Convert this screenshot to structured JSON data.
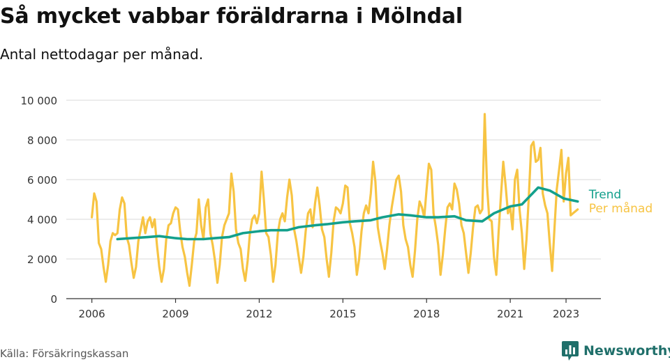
{
  "header": {
    "title": "Så mycket vabbar föräldrarna i Mölndal",
    "subtitle": "Antal nettodagar per månad."
  },
  "footer": {
    "source": "Källa: Försäkringskassan",
    "brand": "Newsworthy",
    "brand_icon": "bar-chart-logo-icon"
  },
  "colors": {
    "trend": "#13a08c",
    "monthly": "#f7c443",
    "grid": "#d9d9d9",
    "axis": "#333333",
    "brand": "#1f6f6a"
  },
  "chart_data": {
    "type": "line",
    "title": "Så mycket vabbar föräldrarna i Mölndal",
    "subtitle": "Antal nettodagar per månad.",
    "xlabel": "",
    "ylabel": "",
    "x_ticks": [
      "2006",
      "2009",
      "2012",
      "2015",
      "2018",
      "2021",
      "2023"
    ],
    "y_ticks": [
      "0",
      "2 000",
      "4 000",
      "6 000",
      "8 000",
      "10 000"
    ],
    "y_tick_values": [
      0,
      2000,
      4000,
      6000,
      8000,
      10000
    ],
    "ylim": [
      0,
      10000
    ],
    "x_range": [
      "2005-02",
      "2024-04"
    ],
    "grid": "horizontal",
    "legend": "line-end labels",
    "series": [
      {
        "name": "Per månad",
        "color": "#f7c443",
        "x": [
          "2006-01",
          "2006-02",
          "2006-03",
          "2006-04",
          "2006-05",
          "2006-06",
          "2006-07",
          "2006-08",
          "2006-09",
          "2006-10",
          "2006-11",
          "2006-12",
          "2007-01",
          "2007-02",
          "2007-03",
          "2007-04",
          "2007-05",
          "2007-06",
          "2007-07",
          "2007-08",
          "2007-09",
          "2007-10",
          "2007-11",
          "2007-12",
          "2008-01",
          "2008-02",
          "2008-03",
          "2008-04",
          "2008-05",
          "2008-06",
          "2008-07",
          "2008-08",
          "2008-09",
          "2008-10",
          "2008-11",
          "2008-12",
          "2009-01",
          "2009-02",
          "2009-03",
          "2009-04",
          "2009-05",
          "2009-06",
          "2009-07",
          "2009-08",
          "2009-09",
          "2009-10",
          "2009-11",
          "2009-12",
          "2010-01",
          "2010-02",
          "2010-03",
          "2010-04",
          "2010-05",
          "2010-06",
          "2010-07",
          "2010-08",
          "2010-09",
          "2010-10",
          "2010-11",
          "2010-12",
          "2011-01",
          "2011-02",
          "2011-03",
          "2011-04",
          "2011-05",
          "2011-06",
          "2011-07",
          "2011-08",
          "2011-09",
          "2011-10",
          "2011-11",
          "2011-12",
          "2012-01",
          "2012-02",
          "2012-03",
          "2012-04",
          "2012-05",
          "2012-06",
          "2012-07",
          "2012-08",
          "2012-09",
          "2012-10",
          "2012-11",
          "2012-12",
          "2013-01",
          "2013-02",
          "2013-03",
          "2013-04",
          "2013-05",
          "2013-06",
          "2013-07",
          "2013-08",
          "2013-09",
          "2013-10",
          "2013-11",
          "2013-12",
          "2014-01",
          "2014-02",
          "2014-03",
          "2014-04",
          "2014-05",
          "2014-06",
          "2014-07",
          "2014-08",
          "2014-09",
          "2014-10",
          "2014-11",
          "2014-12",
          "2015-01",
          "2015-02",
          "2015-03",
          "2015-04",
          "2015-05",
          "2015-06",
          "2015-07",
          "2015-08",
          "2015-09",
          "2015-10",
          "2015-11",
          "2015-12",
          "2016-01",
          "2016-02",
          "2016-03",
          "2016-04",
          "2016-05",
          "2016-06",
          "2016-07",
          "2016-08",
          "2016-09",
          "2016-10",
          "2016-11",
          "2016-12",
          "2017-01",
          "2017-02",
          "2017-03",
          "2017-04",
          "2017-05",
          "2017-06",
          "2017-07",
          "2017-08",
          "2017-09",
          "2017-10",
          "2017-11",
          "2017-12",
          "2018-01",
          "2018-02",
          "2018-03",
          "2018-04",
          "2018-05",
          "2018-06",
          "2018-07",
          "2018-08",
          "2018-09",
          "2018-10",
          "2018-11",
          "2018-12",
          "2019-01",
          "2019-02",
          "2019-03",
          "2019-04",
          "2019-05",
          "2019-06",
          "2019-07",
          "2019-08",
          "2019-09",
          "2019-10",
          "2019-11",
          "2019-12",
          "2020-01",
          "2020-02",
          "2020-03",
          "2020-04",
          "2020-05",
          "2020-06",
          "2020-07",
          "2020-08",
          "2020-09",
          "2020-10",
          "2020-11",
          "2020-12",
          "2021-01",
          "2021-02",
          "2021-03",
          "2021-04",
          "2021-05",
          "2021-06",
          "2021-07",
          "2021-08",
          "2021-09",
          "2021-10",
          "2021-11",
          "2021-12",
          "2022-01",
          "2022-02",
          "2022-03",
          "2022-04",
          "2022-05",
          "2022-06",
          "2022-07",
          "2022-08",
          "2022-09",
          "2022-10",
          "2022-11",
          "2022-12",
          "2023-01",
          "2023-02",
          "2023-03",
          "2023-04",
          "2023-05",
          "2023-06"
        ],
        "values": [
          4100,
          5300,
          4900,
          2800,
          2500,
          1600,
          850,
          1700,
          2900,
          3300,
          3200,
          3300,
          4500,
          5100,
          4800,
          3100,
          2700,
          1800,
          1050,
          1600,
          2900,
          3500,
          4100,
          3300,
          3900,
          4100,
          3600,
          4000,
          2700,
          1600,
          850,
          1500,
          3000,
          3700,
          3800,
          4300,
          4600,
          4500,
          3400,
          2600,
          2100,
          1300,
          650,
          1700,
          2900,
          3300,
          5000,
          3700,
          3000,
          4600,
          5000,
          3300,
          2700,
          1900,
          800,
          1700,
          3100,
          3700,
          4000,
          4300,
          6300,
          5400,
          3500,
          2800,
          2500,
          1500,
          900,
          1900,
          3300,
          4000,
          4200,
          3800,
          4300,
          6400,
          5000,
          3300,
          3100,
          2200,
          850,
          1700,
          3300,
          4000,
          4300,
          3900,
          5100,
          6000,
          5200,
          3500,
          2900,
          2100,
          1300,
          2100,
          3400,
          4300,
          4500,
          3600,
          4800,
          5600,
          4700,
          3500,
          3100,
          2000,
          1100,
          2300,
          3900,
          4600,
          4500,
          4300,
          4800,
          5700,
          5600,
          3800,
          3300,
          2600,
          1200,
          2000,
          3400,
          4300,
          4700,
          4300,
          5300,
          6900,
          5900,
          3600,
          2900,
          2300,
          1500,
          2500,
          3700,
          4600,
          5300,
          6000,
          6200,
          5400,
          3700,
          3000,
          2600,
          1700,
          1100,
          2400,
          4000,
          4900,
          4600,
          4100,
          5500,
          6800,
          6500,
          4300,
          3600,
          2700,
          1200,
          2200,
          3500,
          4600,
          4800,
          4500,
          5800,
          5500,
          4800,
          3700,
          3300,
          2300,
          1300,
          2300,
          3600,
          4600,
          4700,
          4300,
          4500,
          9300,
          5700,
          4000,
          3900,
          2100,
          1200,
          3400,
          5200,
          6900,
          5700,
          4300,
          4600,
          3500,
          6000,
          6500,
          4500,
          3300,
          1500,
          3000,
          5200,
          7700,
          7900,
          6900,
          7000,
          7600,
          5300,
          4700,
          4300,
          2800,
          1400,
          3500,
          5500,
          6500,
          7500,
          4900,
          6300,
          7100,
          4200,
          4300,
          4400,
          4500
        ],
        "end_label": "Per månad"
      },
      {
        "name": "Trend",
        "color": "#13a08c",
        "x": [
          "2006-12",
          "2007-06",
          "2008-01",
          "2008-06",
          "2009-01",
          "2009-06",
          "2010-01",
          "2010-06",
          "2010-12",
          "2011-06",
          "2012-01",
          "2012-06",
          "2013-01",
          "2013-06",
          "2014-01",
          "2014-06",
          "2015-01",
          "2015-06",
          "2016-01",
          "2016-06",
          "2017-01",
          "2017-06",
          "2018-01",
          "2018-06",
          "2019-01",
          "2019-06",
          "2020-01",
          "2020-06",
          "2021-01",
          "2021-06",
          "2022-01",
          "2022-06",
          "2022-12",
          "2023-06"
        ],
        "values": [
          3000,
          3050,
          3100,
          3150,
          3050,
          3000,
          3000,
          3050,
          3100,
          3300,
          3400,
          3450,
          3450,
          3600,
          3700,
          3750,
          3850,
          3900,
          3950,
          4100,
          4250,
          4200,
          4100,
          4100,
          4150,
          3950,
          3900,
          4300,
          4650,
          4750,
          5600,
          5450,
          5050,
          4900
        ],
        "end_label": "Trend"
      }
    ]
  }
}
